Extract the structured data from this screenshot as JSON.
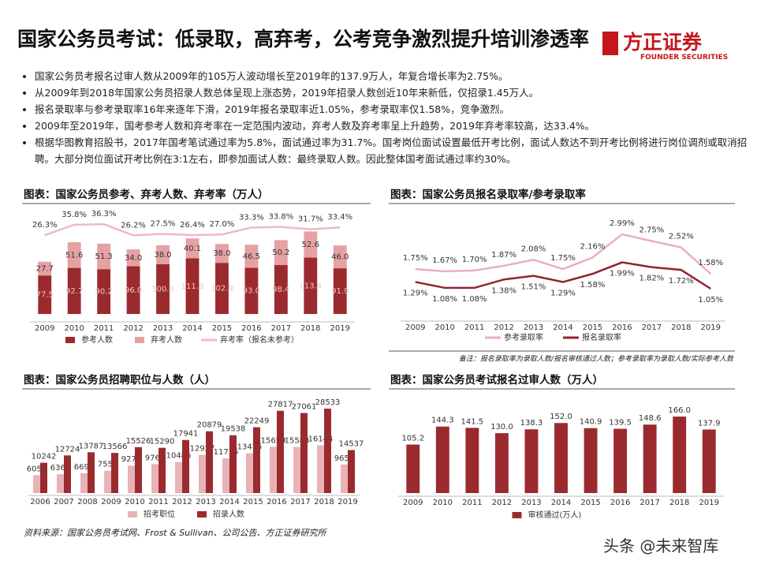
{
  "header": {
    "title": "国家公务员考试：低录取，高弃考，公考竞争激烈提升培训渗透率",
    "logo": "方正证券",
    "logo_sub": "FOUNDER SECURITIES"
  },
  "bullets": [
    "国家公务员考报名过审人数从2009年的105万人波动增长至2019年的137.9万人，年复合增长率为2.75%。",
    "从2009年到2018年国家公务员招录人数总体呈现上涨态势，2019年招录人数创近10年来新低，仅招录1.45万人。",
    "报名录取率与参考录取率16年来逐年下滑，2019年报名录取率近1.05%，参考录取率仅1.58%，竞争激烈。",
    "2009年至2019年，国考参考人数和弃考率在一定范围内波动，弃考人数及弃考率呈上升趋势，2019年弃考率较高，达33.4%。",
    "根据华图教育招股书，2017年国考笔试通过率为5.8%，面试通过率为31.7%。国考岗位面试设置最低开考比例，面试人数达不到开考比例将进行岗位调剂或取消招聘。大部分岗位面试开考比例在3:1左右，即参加面试人数：最终录取人数。因此整体国考面试通过率约30%。"
  ],
  "chart_data": [
    {
      "type": "bar",
      "stacked": true,
      "title": "图表：国家公务员参考、弃考人数、弃考率（万人）",
      "categories": [
        "2009",
        "2010",
        "2011",
        "2012",
        "2013",
        "2014",
        "2015",
        "2016",
        "2017",
        "2018",
        "2019"
      ],
      "series": [
        {
          "name": "参考人数",
          "color": "#9b2a2f",
          "values": [
            77.5,
            92.7,
            90.2,
            96.0,
            100.3,
            111.9,
            102.9,
            93.0,
            98.4,
            113.4,
            91.9
          ],
          "value_labels": [
            "77.5",
            "92.7",
            "90.2",
            "96.0",
            "100.3",
            "111.9",
            "102.9",
            "93.0",
            "98.4",
            "113.4",
            "91.9"
          ]
        },
        {
          "name": "弃考人数",
          "color": "#e5a1a4",
          "values": [
            27.7,
            51.6,
            51.3,
            34.0,
            38.0,
            40.1,
            38.0,
            46.5,
            50.2,
            52.6,
            46.0
          ],
          "value_labels": [
            "27.7",
            "51.6",
            "51.3",
            "34.0",
            "38.0",
            "40.1",
            "38.0",
            "46.5",
            "50.2",
            "52.6",
            "46.0"
          ]
        },
        {
          "name": "弃考率（报名未参考）",
          "type": "line",
          "color": "#f1b9c0",
          "values": [
            26.3,
            35.8,
            36.3,
            26.2,
            27.5,
            26.4,
            27.0,
            33.3,
            33.8,
            31.7,
            33.4
          ],
          "value_labels": [
            "26.3%",
            "35.8%",
            "36.3%",
            "26.2%",
            "27.5%",
            "26.4%",
            "27.0%",
            "33.3%",
            "33.8%",
            "31.7%",
            "33.4%"
          ]
        }
      ]
    },
    {
      "type": "line",
      "title": "图表：国家公务员报名录取率/参考录取率",
      "note": "备注：报名录取率为录取人数/报名审核通过人数；参考录取率为录取人数/实际参考人数",
      "categories": [
        "2009",
        "2010",
        "2011",
        "2012",
        "2013",
        "2014",
        "2015",
        "2016",
        "2017",
        "2018",
        "2019"
      ],
      "series": [
        {
          "name": "参考录取率",
          "color": "#eab0b6",
          "values": [
            1.75,
            1.67,
            1.7,
            1.87,
            2.08,
            1.75,
            2.16,
            2.99,
            2.75,
            2.52,
            1.58
          ],
          "value_labels": [
            "1.75%",
            "1.67%",
            "1.70%",
            "1.87%",
            "2.08%",
            "1.75%",
            "2.16%",
            "2.99%",
            "2.75%",
            "2.52%",
            "1.58%"
          ]
        },
        {
          "name": "报名录取率",
          "color": "#8e2530",
          "values": [
            1.29,
            1.08,
            1.08,
            1.38,
            1.51,
            1.29,
            1.58,
            1.99,
            1.82,
            1.72,
            1.05
          ],
          "value_labels": [
            "1.29%",
            "1.08%",
            "1.08%",
            "1.38%",
            "1.51%",
            "1.29%",
            "1.58%",
            "1.99%",
            "1.82%",
            "1.72%",
            "1.05%"
          ]
        }
      ]
    },
    {
      "type": "bar",
      "stacked": false,
      "title": "图表：国家公务员招聘职位与人数（人）",
      "categories": [
        "2006",
        "2007",
        "2008",
        "2009",
        "2010",
        "2011",
        "2012",
        "2013",
        "2014",
        "2015",
        "2016",
        "2017",
        "2018",
        "2019"
      ],
      "series": [
        {
          "name": "招考职位",
          "color": "#e8b3b6",
          "values": [
            6050,
            6364,
            6691,
            7555,
            9275,
            9763,
            10486,
            12927,
            11735,
            13475,
            15659,
            15583,
            16144,
            9651
          ]
        },
        {
          "name": "招录人数",
          "color": "#9b2a2f",
          "values": [
            10242,
            12724,
            13787,
            13566,
            15526,
            15290,
            17941,
            20879,
            19538,
            22249,
            27817,
            27061,
            28533,
            14537
          ]
        }
      ]
    },
    {
      "type": "bar",
      "stacked": false,
      "title": "图表：国家公务员考试报名过审人数（万人）",
      "categories": [
        "2009",
        "2010",
        "2011",
        "2012",
        "2013",
        "2014",
        "2015",
        "2016",
        "2017",
        "2018",
        "2019"
      ],
      "series": [
        {
          "name": "审核通过(万人)",
          "color": "#9b2a2f",
          "values": [
            105.2,
            144.3,
            141.5,
            130.0,
            138.3,
            152.0,
            140.9,
            139.5,
            148.6,
            166.0,
            137.9
          ],
          "value_labels": [
            "105.2",
            "144.3",
            "141.5",
            "130.0",
            "138.3",
            "152.0",
            "140.9",
            "139.5",
            "148.6",
            "166.0",
            "137.9"
          ]
        }
      ]
    }
  ],
  "source": "资料来源：国家公务员考试网、Frost & Sullivan、公司公告、方正证券研究所",
  "watermark": "头条 @未来智库"
}
